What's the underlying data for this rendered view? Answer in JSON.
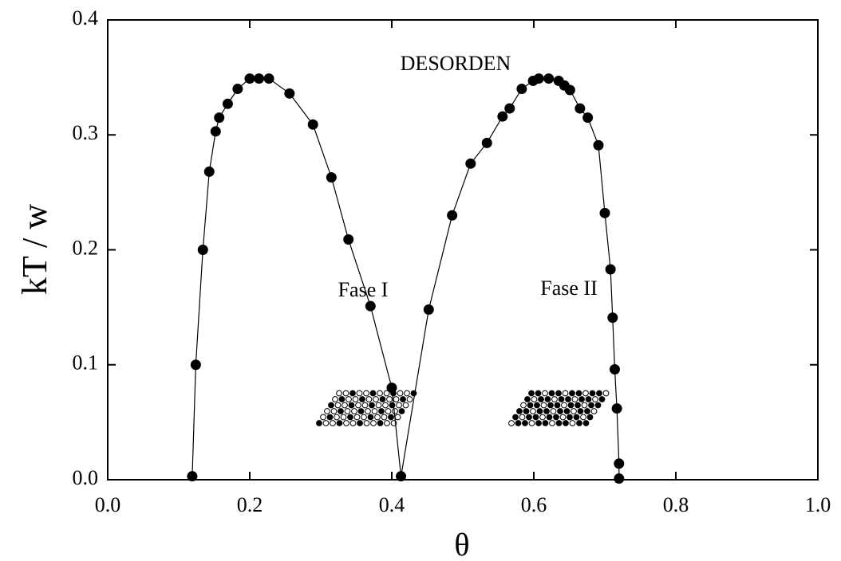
{
  "chart_data": {
    "type": "line",
    "xlabel": "θ",
    "ylabel": "kT / w",
    "annotations": [
      "DESORDEN",
      "Fase I",
      "Fase II"
    ],
    "x": [
      0.119,
      0.124,
      0.134,
      0.143,
      0.152,
      0.157,
      0.169,
      0.183,
      0.2,
      0.213,
      0.227,
      0.256,
      0.289,
      0.315,
      0.339,
      0.37,
      0.4,
      0.413,
      0.452,
      0.485,
      0.511,
      0.534,
      0.556,
      0.566,
      0.583,
      0.599,
      0.607,
      0.621,
      0.635,
      0.643,
      0.651,
      0.665,
      0.676,
      0.691,
      0.7,
      0.708,
      0.711,
      0.714,
      0.717,
      0.72,
      0.72
    ],
    "series": [
      {
        "color": "#000000",
        "values": [
          0.003,
          0.1,
          0.2,
          0.268,
          0.303,
          0.315,
          0.327,
          0.34,
          0.349,
          0.349,
          0.349,
          0.336,
          0.309,
          0.263,
          0.209,
          0.151,
          0.08,
          0.003,
          0.148,
          0.23,
          0.275,
          0.293,
          0.316,
          0.323,
          0.34,
          0.347,
          0.349,
          0.349,
          0.347,
          0.343,
          0.339,
          0.323,
          0.315,
          0.291,
          0.232,
          0.183,
          0.141,
          0.096,
          0.062,
          0.014,
          0.001
        ]
      }
    ],
    "xlim": [
      0,
      1
    ],
    "ylim": [
      0,
      0.4
    ],
    "xticks": [
      {
        "value": 0,
        "label": "0.0"
      },
      0.2,
      0.4,
      0.6,
      0.8,
      {
        "value": 1,
        "label": "1.0"
      }
    ],
    "yticks": [
      {
        "value": 0,
        "label": "0.0"
      },
      0.1,
      0.2,
      0.3,
      0.4
    ]
  }
}
